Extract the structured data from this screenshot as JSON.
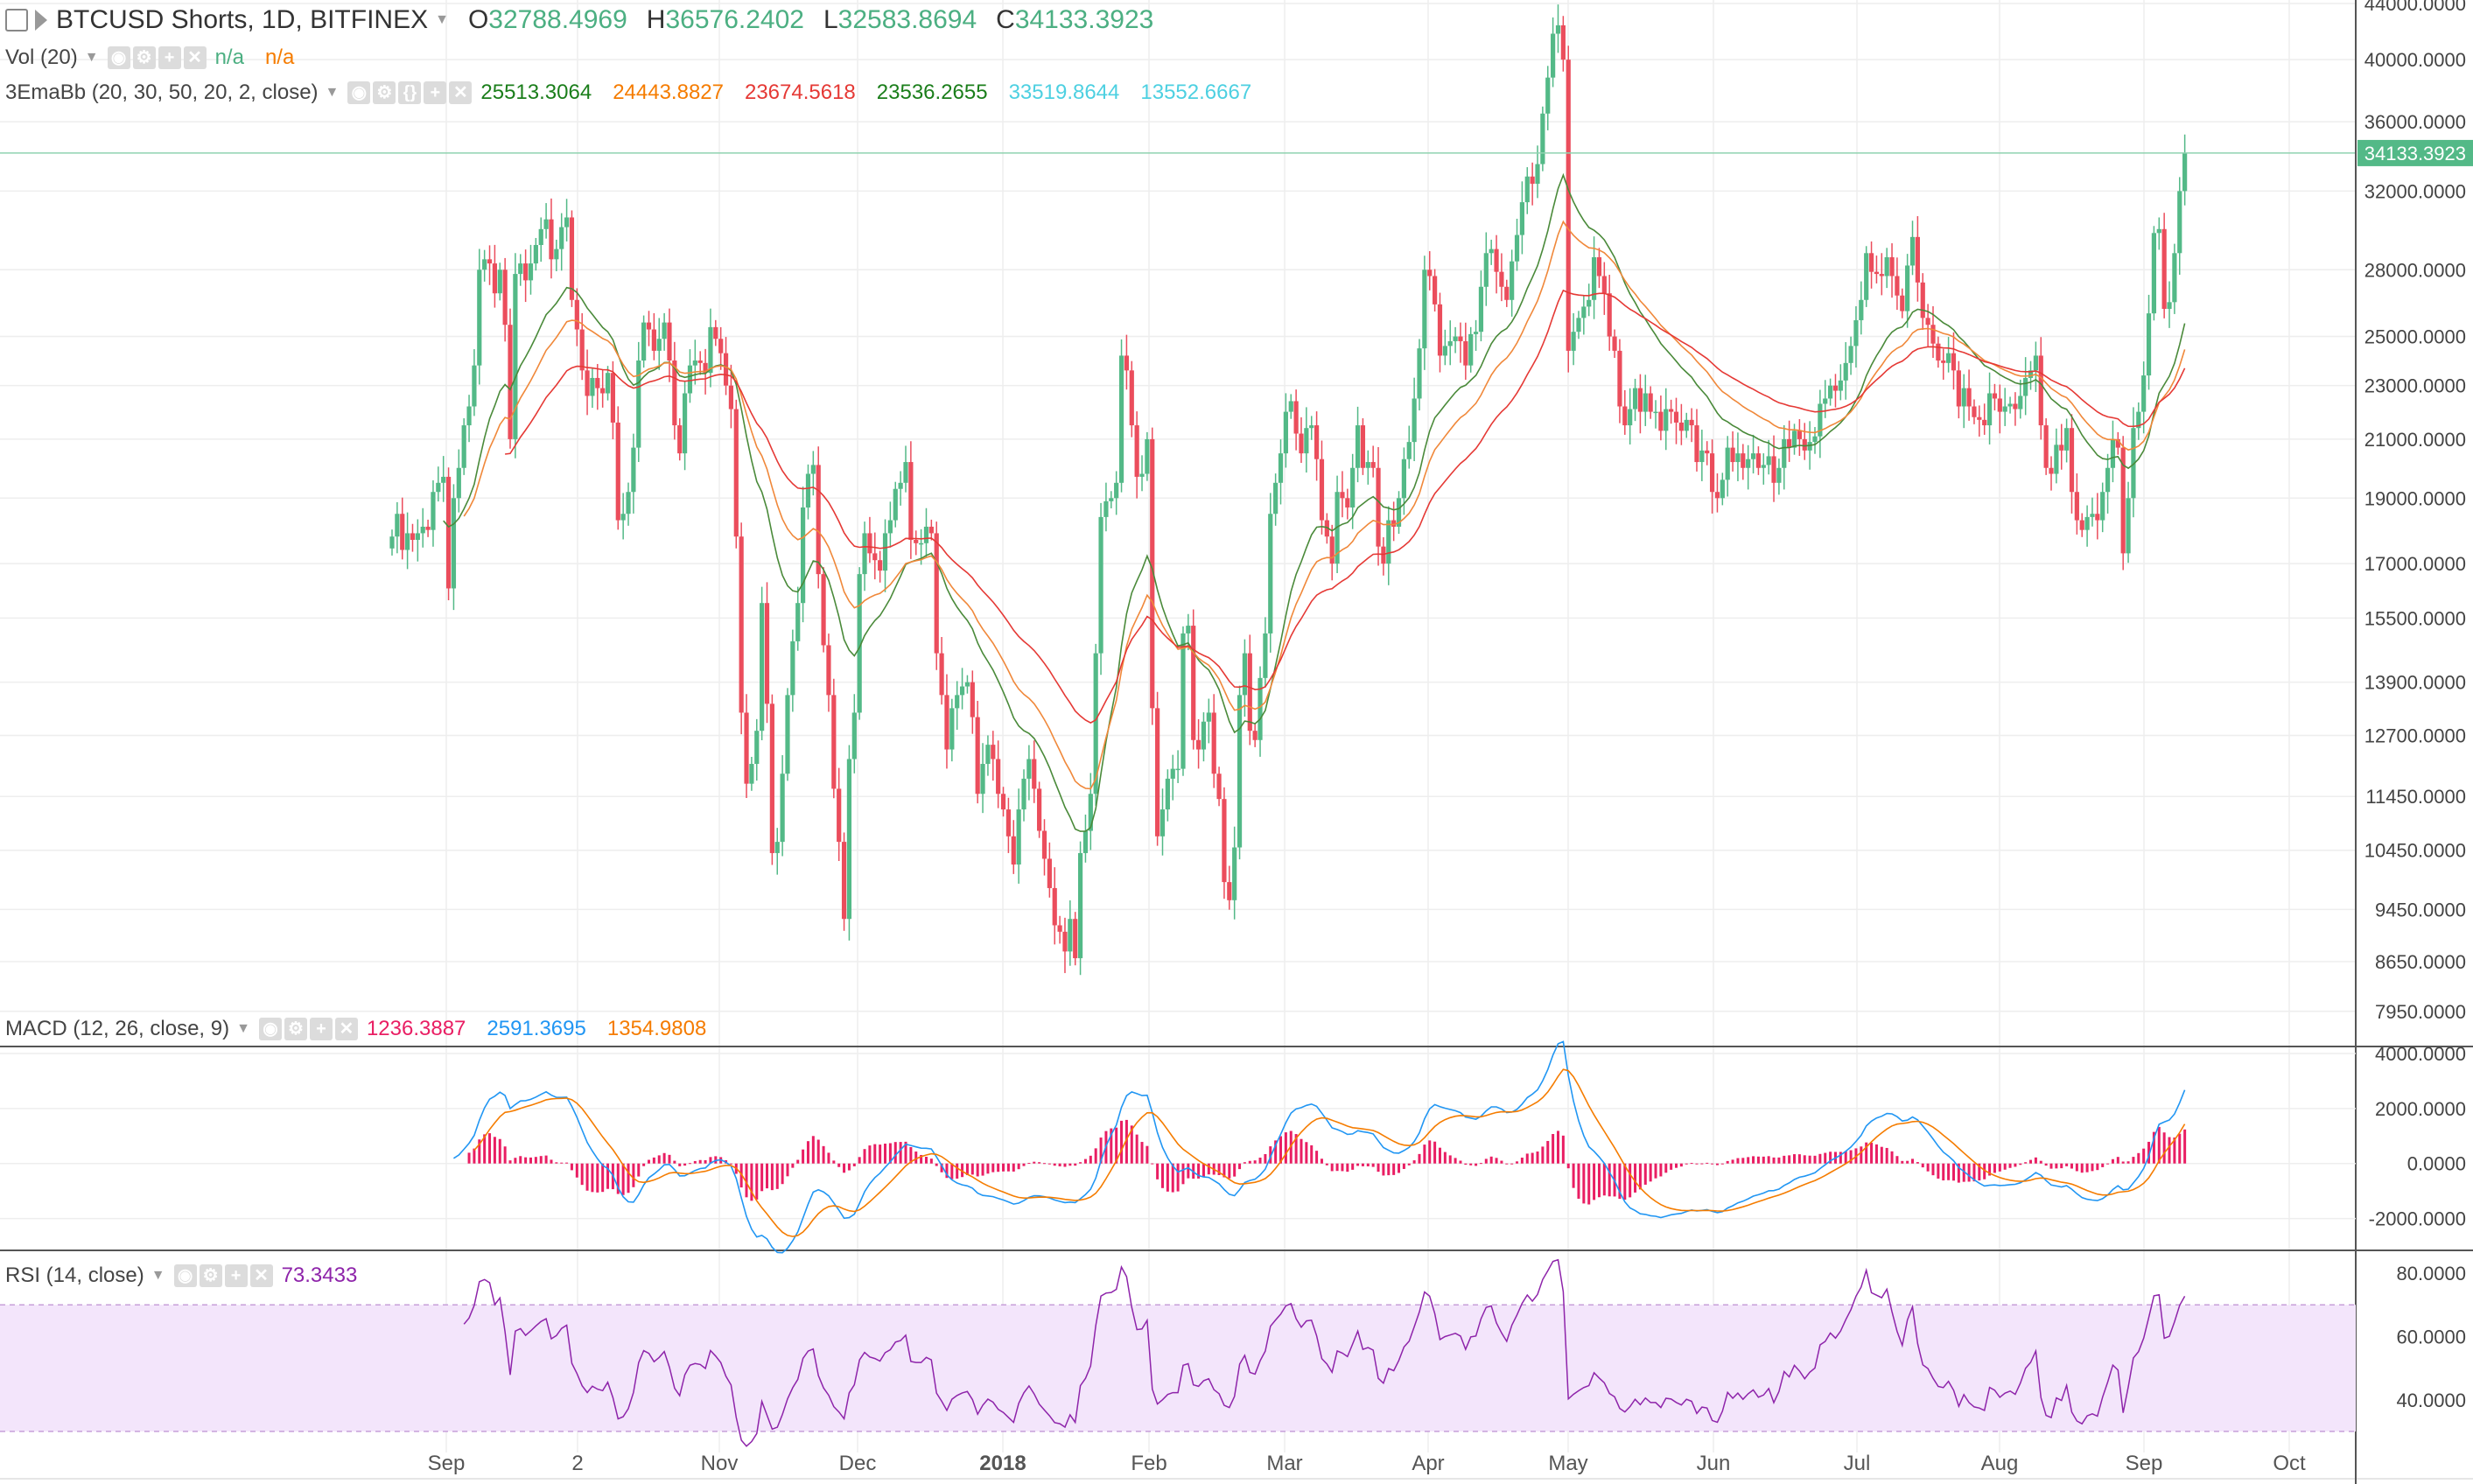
{
  "header": {
    "symbol": "BTCUSD Shorts, 1D, BITFINEX",
    "o_label": "O",
    "o": "32788.4969",
    "h_label": "H",
    "h": "36576.2402",
    "l_label": "L",
    "l": "32583.8694",
    "c_label": "C",
    "c": "34133.3923"
  },
  "vol_indicator": {
    "label": "Vol (20)",
    "v1": "n/a",
    "v2": "n/a"
  },
  "ema_indicator": {
    "label": "3EmaBb (20, 30, 50, 20, 2, close)",
    "values": [
      "25513.3064",
      "24443.8827",
      "23674.5618",
      "23536.2655",
      "33519.8644",
      "13552.6667"
    ],
    "colors": [
      "#1b7e1b",
      "#f57c00",
      "#e53935",
      "#1b7e1b",
      "#4dd0e1",
      "#4dd0e1"
    ]
  },
  "macd_indicator": {
    "label": "MACD (12, 26, close, 9)",
    "values": [
      "1236.3887",
      "2591.3695",
      "1354.9808"
    ],
    "colors": [
      "#e91e63",
      "#2196f3",
      "#f57c00"
    ]
  },
  "rsi_indicator": {
    "label": "RSI (14, close)",
    "value": "73.3433",
    "color": "#8e24aa"
  },
  "price_axis": {
    "labels": [
      "44000.0000",
      "40000.0000",
      "36000.0000",
      "32000.0000",
      "28000.0000",
      "25000.0000",
      "23000.0000",
      "21000.0000",
      "19000.0000",
      "17000.0000",
      "15500.0000",
      "13900.0000",
      "12700.0000",
      "11450.0000",
      "10450.0000",
      "9450.0000",
      "8650.0000",
      "7950.0000"
    ],
    "current": "34133.3923"
  },
  "macd_axis": {
    "labels": [
      "4000.0000",
      "2000.0000",
      "0.0000",
      "-2000.0000"
    ]
  },
  "rsi_axis": {
    "labels": [
      "80.0000",
      "60.0000",
      "40.0000"
    ]
  },
  "time_axis": {
    "labels": [
      "Sep",
      "2",
      "Nov",
      "Dec",
      "2018",
      "Feb",
      "Mar",
      "Apr",
      "May",
      "Jun",
      "Jul",
      "Aug",
      "Sep",
      "Oct"
    ]
  },
  "colors": {
    "up": "#53b987",
    "down": "#eb4d5c",
    "grid": "#eeeeee",
    "rsi_band": "#f3e5fb",
    "rsi_line": "#8e24aa",
    "macd_line": "#2196f3",
    "signal_line": "#f57c00",
    "hist": "#e91e63"
  },
  "chart_data": {
    "type": "candlestick",
    "xlabel": "",
    "ylabel": "",
    "ylim_log": [
      7500,
      44000
    ],
    "x_dates_start": "2017-08-20",
    "closes": [
      17800,
      18500,
      17400,
      17900,
      17700,
      17900,
      18100,
      18000,
      19200,
      19500,
      19700,
      16300,
      19000,
      20000,
      21500,
      22200,
      23800,
      28000,
      28500,
      28300,
      26900,
      28000,
      25500,
      21000,
      27800,
      28300,
      27500,
      28300,
      29200,
      30000,
      30500,
      28500,
      29000,
      30100,
      30600,
      26600,
      25300,
      23600,
      22600,
      23300,
      22900,
      22700,
      23500,
      21600,
      18300,
      18500,
      19200,
      20700,
      24000,
      25600,
      25300,
      24400,
      24900,
      25600,
      24000,
      21500,
      20500,
      22700,
      23800,
      24000,
      23900,
      23500,
      25400,
      24900,
      24300,
      23000,
      22100,
      17800,
      13200,
      11700,
      12100,
      12800,
      15900,
      13400,
      10400,
      10600,
      11900,
      13600,
      14900,
      15900,
      18700,
      19800,
      20100,
      16700,
      14800,
      13600,
      11600,
      10600,
      9300,
      12200,
      13200,
      16700,
      17900,
      17300,
      17100,
      16800,
      17900,
      18300,
      19300,
      19500,
      20200,
      17700,
      17600,
      17600,
      18100,
      17900,
      14600,
      13600,
      12400,
      13300,
      13600,
      13800,
      13900,
      13100,
      11500,
      12100,
      12500,
      12200,
      11500,
      11200,
      10700,
      10200,
      11200,
      11800,
      12200,
      11600,
      10800,
      10300,
      9800,
      9200,
      9100,
      8800,
      9300,
      8700,
      10400,
      10800,
      11500,
      14600,
      18400,
      18900,
      19000,
      19500,
      24200,
      23600,
      21500,
      19700,
      19800,
      21000,
      13300,
      10700,
      11200,
      11800,
      12000,
      12000,
      15100,
      15300,
      12600,
      12400,
      13000,
      13200,
      11900,
      11400,
      9900,
      9600,
      10500,
      13600,
      14600,
      12800,
      12600,
      14000,
      15100,
      18500,
      19500,
      20500,
      22000,
      22400,
      21200,
      20500,
      21400,
      21500,
      20300,
      18300,
      17800,
      17000,
      19200,
      19000,
      18700,
      20000,
      21500,
      20000,
      20200,
      20000,
      17500,
      17000,
      18300,
      18100,
      19000,
      20300,
      20900,
      22500,
      24500,
      28000,
      27700,
      26400,
      24200,
      24600,
      24800,
      25000,
      24800,
      23800,
      25100,
      25200,
      27200,
      28800,
      29000,
      27900,
      27200,
      26600,
      28400,
      29700,
      31400,
      32800,
      32400,
      33500,
      36500,
      38800,
      41800,
      42400,
      40000,
      24400,
      25200,
      25800,
      26300,
      26600,
      28600,
      27700,
      26900,
      25000,
      24400,
      22200,
      21500,
      22100,
      22900,
      22000,
      22700,
      22000,
      22000,
      21300,
      22100,
      22000,
      21600,
      21300,
      21700,
      21500,
      20200,
      20600,
      20500,
      19200,
      19000,
      19600,
      20700,
      20200,
      20500,
      20000,
      20300,
      20500,
      20000,
      20100,
      20400,
      19500,
      20000,
      21000,
      20700,
      21300,
      21000,
      20600,
      20900,
      21100,
      22300,
      22500,
      23000,
      22800,
      23200,
      23900,
      24600,
      25700,
      26600,
      28800,
      27900,
      27800,
      27700,
      28600,
      27700,
      26800,
      26100,
      28200,
      29600,
      27400,
      25800,
      25500,
      24700,
      24000,
      23900,
      24300,
      23600,
      22200,
      22900,
      22200,
      21800,
      21700,
      21500,
      22700,
      22500,
      22000,
      22200,
      22300,
      22100,
      22600,
      23300,
      23600,
      24200,
      21500,
      20000,
      19800,
      20800,
      20600,
      21400,
      19200,
      18300,
      18000,
      18400,
      18500,
      18300,
      19200,
      20000,
      21000,
      20700,
      17300,
      19000,
      21400,
      22000,
      23400,
      26000,
      29800,
      30000,
      26200,
      26500,
      28800,
      32000,
      34133
    ],
    "macd_range": [
      -3000,
      4000
    ],
    "rsi_range": [
      25,
      85
    ],
    "rsi_band": [
      30,
      70
    ]
  }
}
